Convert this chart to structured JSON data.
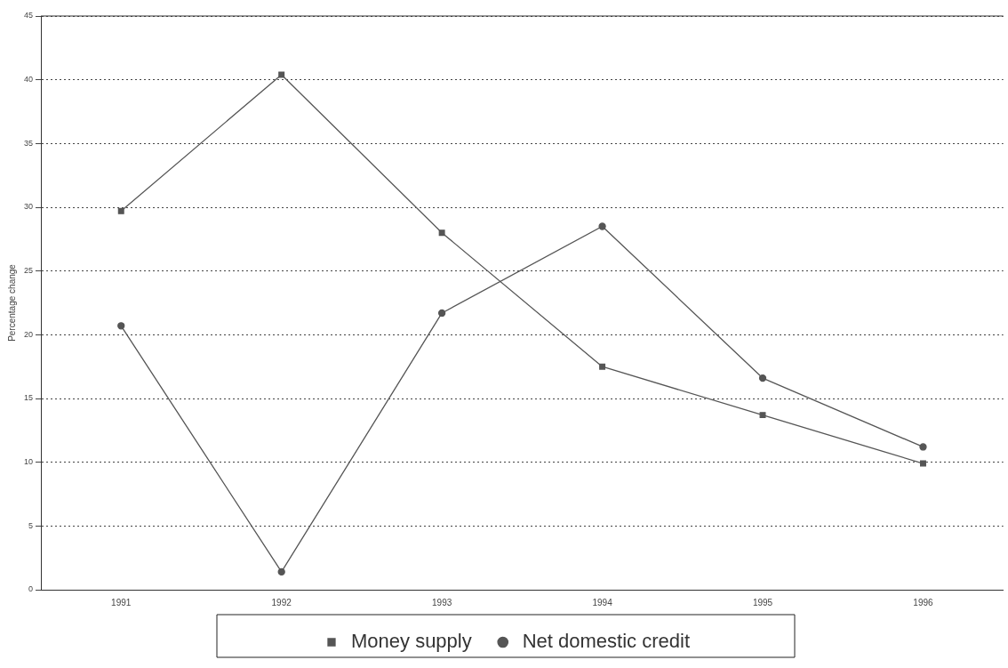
{
  "chart_data": {
    "type": "line",
    "ylabel": "Percentage change",
    "categories": [
      "1991",
      "1992",
      "1993",
      "1994",
      "1995",
      "1996"
    ],
    "series": [
      {
        "name": "Money supply",
        "color": "#555555",
        "marker": "square",
        "values": [
          29.7,
          40.4,
          28.0,
          17.5,
          13.7,
          9.9
        ]
      },
      {
        "name": "Net domestic credit",
        "color": "#555555",
        "marker": "circle",
        "values": [
          20.7,
          1.4,
          21.7,
          28.5,
          16.6,
          11.2
        ]
      }
    ],
    "ylim": [
      0,
      45
    ],
    "yticks": [
      0,
      5,
      10,
      15,
      20,
      25,
      30,
      35,
      40,
      45
    ],
    "grid": "y",
    "legend": "bottom",
    "line_style": "solid"
  }
}
